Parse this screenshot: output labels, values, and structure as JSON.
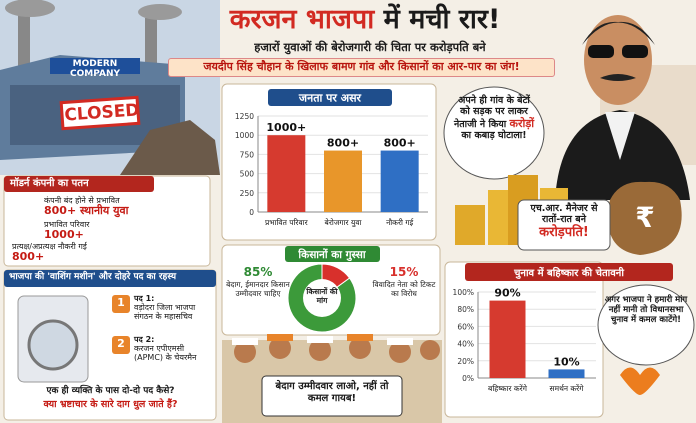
{
  "header": {
    "title_red": "करजन भाजपा",
    "title_black": "में मची रार!",
    "subtitle": "हजारों युवाओं की बेरोजगारी की चिता पर करोड़पति बने",
    "tagline": "जयदीप सिंह चौहान के खिलाफ बामण गांव और किसानों का आर-पार का जंग!"
  },
  "factory": {
    "sign": "MODERN COMPANY",
    "stamp": "CLOSED"
  },
  "company_panel": {
    "title": "मॉडर्न कंपनी का पतन",
    "items": [
      {
        "label": "कंपनी बंद होने से प्रभावित",
        "value": "800+ स्थानीय युवा"
      },
      {
        "label": "प्रभावित परिवार",
        "value": "1000+"
      },
      {
        "label": "प्रत्यक्ष/अप्रत्यक्ष नौकरी गई",
        "value": "800+"
      }
    ]
  },
  "post_panel": {
    "title": "भाजपा की 'वाशिंग मशीन' और दोहरे पद का रहस्य",
    "posts": [
      {
        "number": "1",
        "label": "पद 1:",
        "text": "वड़ोदरा जिला भाजपा संगठन के महासचिव"
      },
      {
        "number": "2",
        "label": "पद 2:",
        "text": "करजन एपीएमसी (APMC) के चेयरमैन"
      }
    ],
    "question": "एक ही व्यक्ति के पास दो-दो पद कैसे?",
    "accusation": "क्या भ्रष्टाचार के सारे दाग धुल जाते हैं?"
  },
  "bubbles": {
    "village": {
      "before": "अपने ही गांव के बेटों को सड़क पर लाकर नेताजी ने किया",
      "highlight": "करोड़ों",
      "after": "का कबाड़ घोटाला!"
    },
    "hr": {
      "text": "एच.आर. मैनेजर से रातों-रात बने",
      "highlight": "करोड़पति!"
    },
    "warning": "अगर भाजपा ने हमारी मांग नहीं मानी तो विधानसभा चुनाव में कमल काटेंगे!"
  },
  "bag_symbol": "₹",
  "banner": "बेदाग उम्मीदवार लाओ, नहीं तो कमल गायब!",
  "chart_data": [
    {
      "type": "bar",
      "title": "जनता पर असर",
      "categories": [
        "प्रभावित परिवार",
        "बेरोजगार युवा",
        "नौकरी गई"
      ],
      "values": [
        1000,
        800,
        800
      ],
      "value_labels": [
        "1000+",
        "800+",
        "800+"
      ],
      "colors": [
        "#d63a2f",
        "#e8962a",
        "#2f6fc4"
      ],
      "ylim": [
        0,
        1250
      ],
      "yticks": [
        0,
        250,
        500,
        750,
        1000,
        1250
      ],
      "grid": true
    },
    {
      "type": "pie",
      "title": "किसानों का गुस्सा",
      "center_label": "किसानों की मांग",
      "categories": [
        "बेदाग, ईमानदार किसान उम्मीदवार चाहिए",
        "विवादित नेता को टिकट का विरोध"
      ],
      "values": [
        85,
        15
      ],
      "value_labels": [
        "85%",
        "15%"
      ],
      "colors": [
        "#3c9a3a",
        "#d8302c"
      ]
    },
    {
      "type": "bar",
      "title": "चुनाव में बहिष्कार की चेतावनी",
      "categories": [
        "बहिष्कार करेंगे",
        "समर्थन करेंगे"
      ],
      "values": [
        90,
        10
      ],
      "value_labels": [
        "90%",
        "10%"
      ],
      "colors": [
        "#d63a2f",
        "#2f6fc4"
      ],
      "ylim": [
        0,
        100
      ],
      "yticks": [
        {
          "value": 0,
          "label": "0%"
        },
        {
          "value": 20,
          "label": "20%"
        },
        {
          "value": 40,
          "label": "40%"
        },
        {
          "value": 60,
          "label": "60%"
        },
        {
          "value": 80,
          "label": "80%"
        },
        {
          "value": 100,
          "label": "100%"
        }
      ],
      "grid": true
    }
  ]
}
